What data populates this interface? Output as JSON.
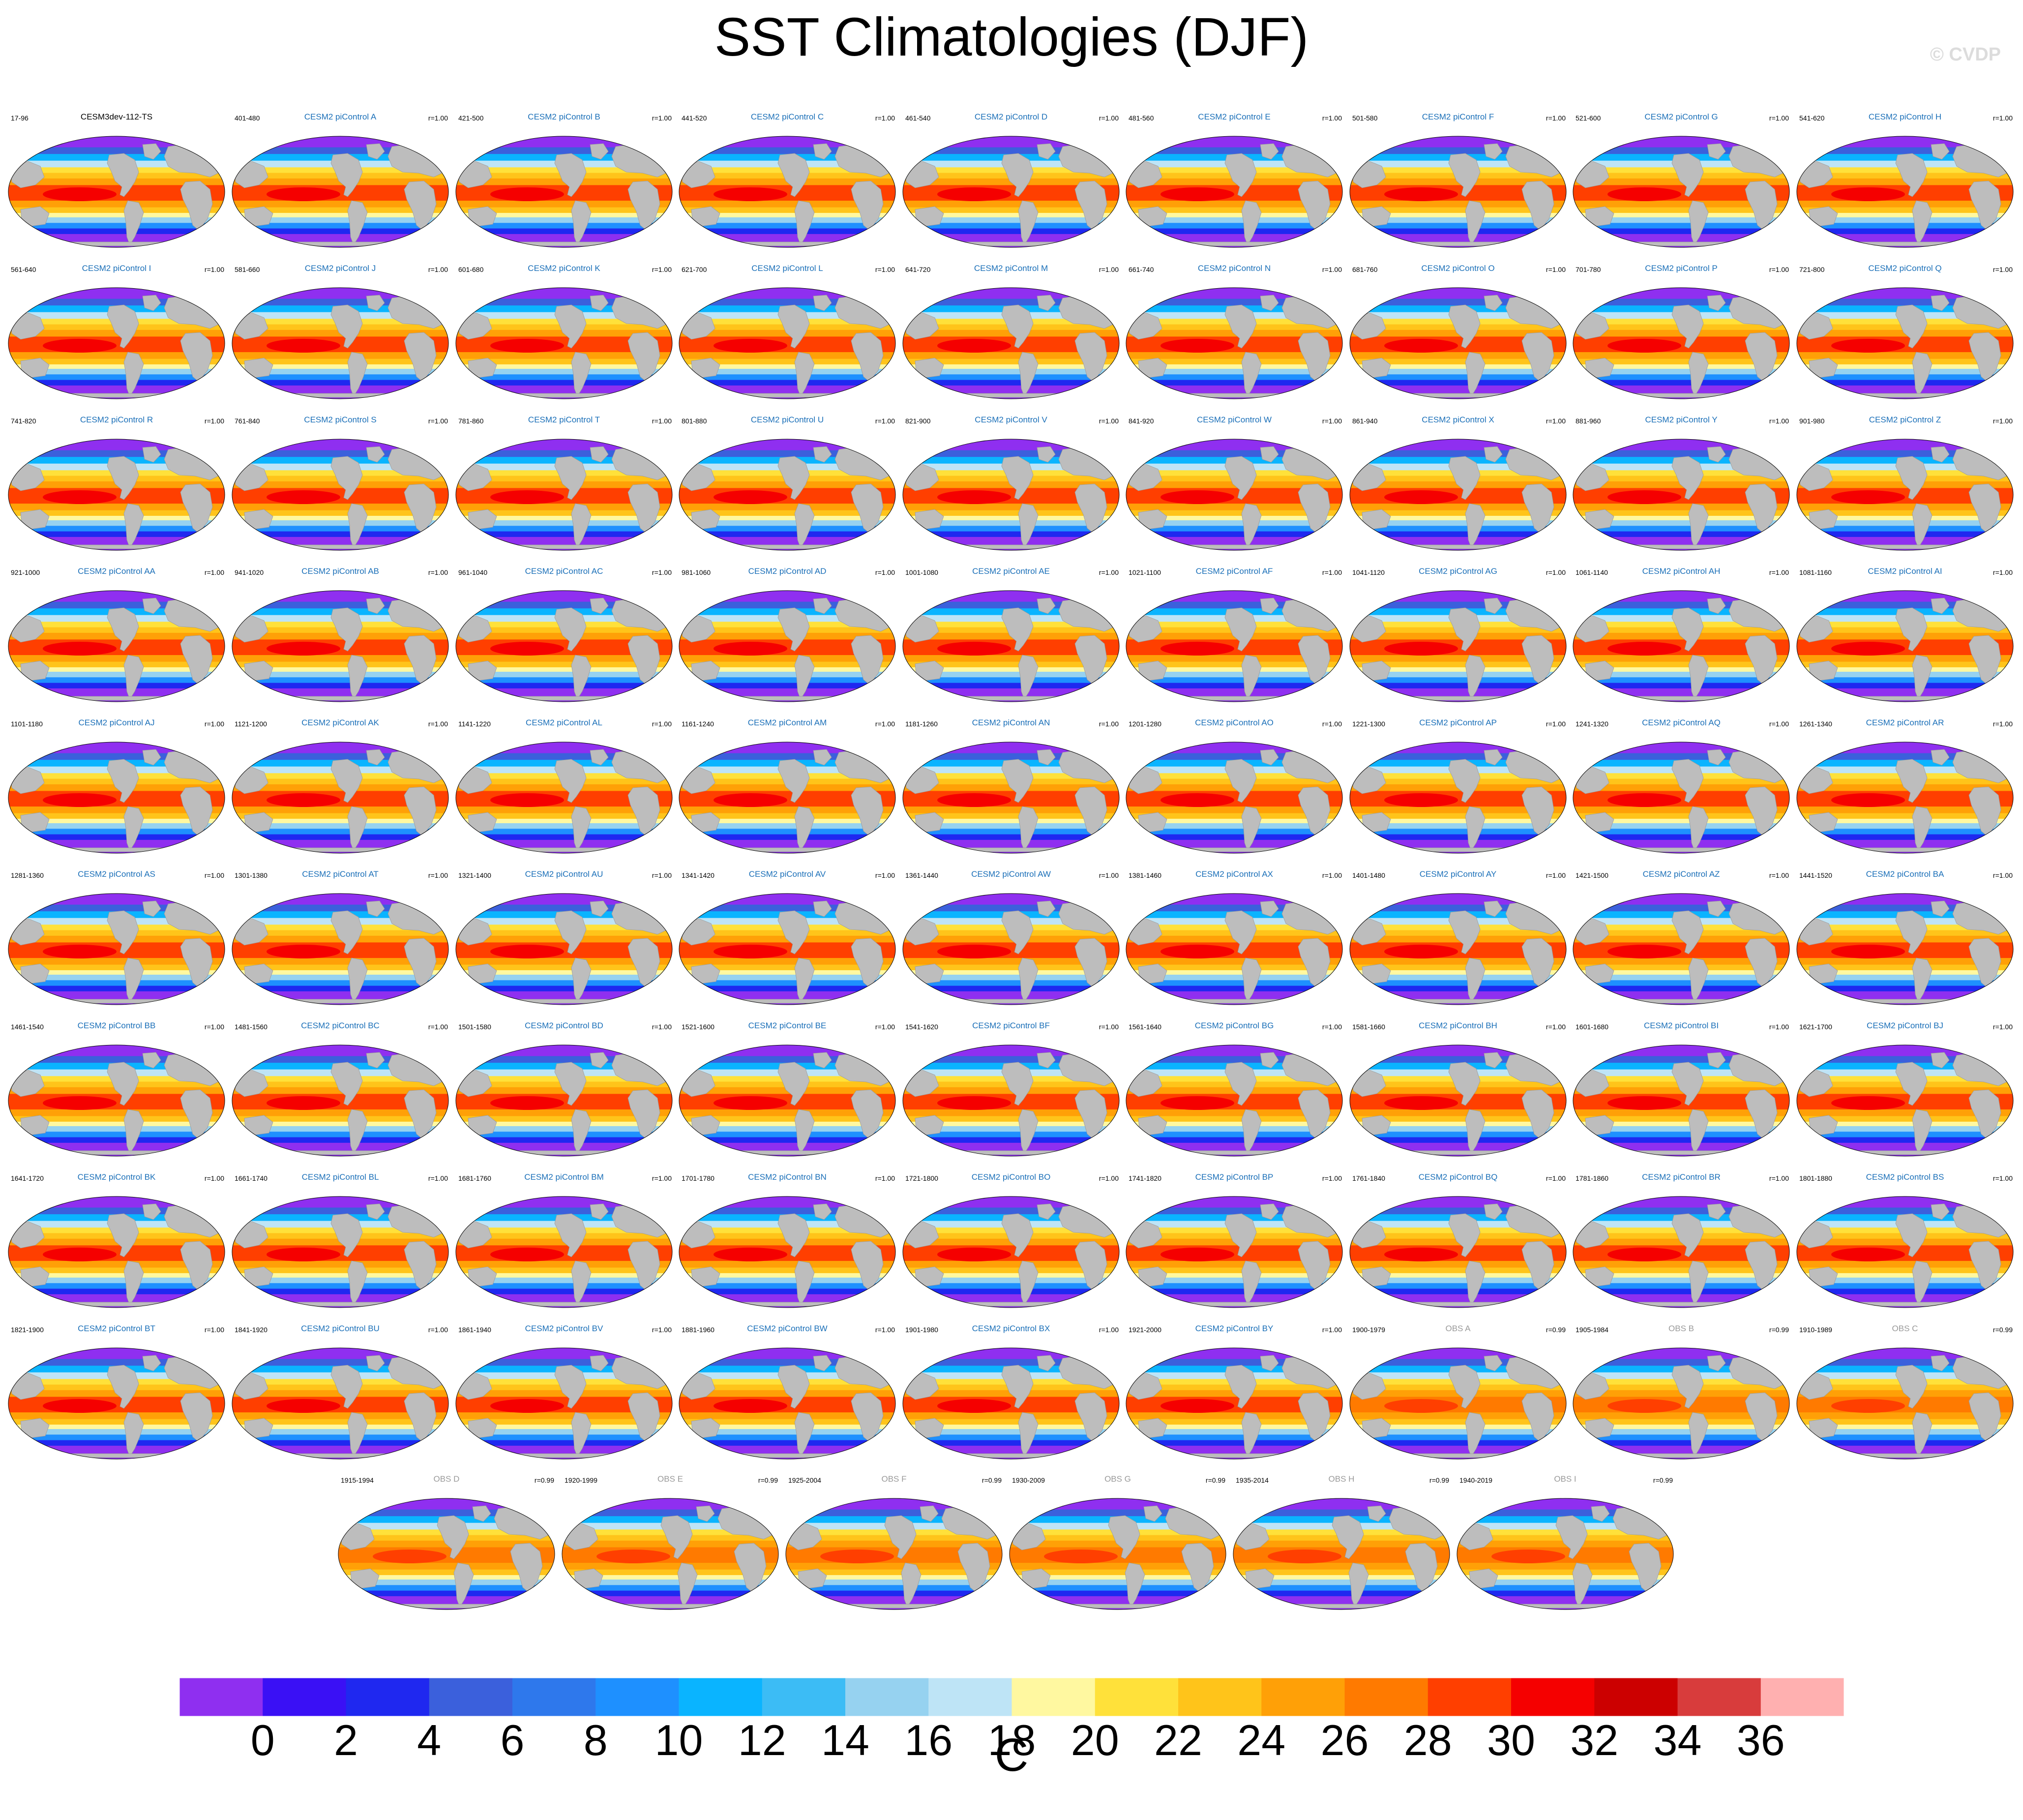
{
  "title": "SST Climatologies (DJF)",
  "copyright": "© CVDP",
  "chart_data": {
    "type": "map-panels",
    "variable": "SST",
    "season": "DJF",
    "colorbar": {
      "unit": "C",
      "tick_labels": [
        "0",
        "2",
        "4",
        "6",
        "8",
        "10",
        "12",
        "14",
        "16",
        "18",
        "20",
        "22",
        "24",
        "26",
        "28",
        "30",
        "32",
        "34",
        "36"
      ],
      "levels": [
        0,
        2,
        4,
        6,
        8,
        10,
        12,
        14,
        16,
        18,
        20,
        22,
        24,
        26,
        28,
        30,
        32,
        34,
        36
      ],
      "colors": [
        "#8f2ff0",
        "#3a10f5",
        "#1f28f0",
        "#3b60dc",
        "#2e78ec",
        "#1e90ff",
        "#0ab4ff",
        "#3cbcf5",
        "#96d2f0",
        "#bee4f6",
        "#fff8a0",
        "#ffe13a",
        "#ffc41a",
        "#ffa007",
        "#ff7a00",
        "#ff3f00",
        "#f50000",
        "#cc0000",
        "#d83c3c",
        "#ffb0b0"
      ]
    },
    "panels": [
      {
        "name": "CESM3dev-112-TS",
        "years": "17-96",
        "r": "",
        "obs": false,
        "ref": true
      },
      {
        "name": "CESM2 piControl A",
        "years": "401-480",
        "r": "r=1.00",
        "obs": false
      },
      {
        "name": "CESM2 piControl B",
        "years": "421-500",
        "r": "r=1.00",
        "obs": false
      },
      {
        "name": "CESM2 piControl C",
        "years": "441-520",
        "r": "r=1.00",
        "obs": false
      },
      {
        "name": "CESM2 piControl D",
        "years": "461-540",
        "r": "r=1.00",
        "obs": false
      },
      {
        "name": "CESM2 piControl E",
        "years": "481-560",
        "r": "r=1.00",
        "obs": false
      },
      {
        "name": "CESM2 piControl F",
        "years": "501-580",
        "r": "r=1.00",
        "obs": false
      },
      {
        "name": "CESM2 piControl G",
        "years": "521-600",
        "r": "r=1.00",
        "obs": false
      },
      {
        "name": "CESM2 piControl H",
        "years": "541-620",
        "r": "r=1.00",
        "obs": false
      },
      {
        "name": "CESM2 piControl I",
        "years": "561-640",
        "r": "r=1.00",
        "obs": false
      },
      {
        "name": "CESM2 piControl J",
        "years": "581-660",
        "r": "r=1.00",
        "obs": false
      },
      {
        "name": "CESM2 piControl K",
        "years": "601-680",
        "r": "r=1.00",
        "obs": false
      },
      {
        "name": "CESM2 piControl L",
        "years": "621-700",
        "r": "r=1.00",
        "obs": false
      },
      {
        "name": "CESM2 piControl M",
        "years": "641-720",
        "r": "r=1.00",
        "obs": false
      },
      {
        "name": "CESM2 piControl N",
        "years": "661-740",
        "r": "r=1.00",
        "obs": false
      },
      {
        "name": "CESM2 piControl O",
        "years": "681-760",
        "r": "r=1.00",
        "obs": false
      },
      {
        "name": "CESM2 piControl P",
        "years": "701-780",
        "r": "r=1.00",
        "obs": false
      },
      {
        "name": "CESM2 piControl Q",
        "years": "721-800",
        "r": "r=1.00",
        "obs": false
      },
      {
        "name": "CESM2 piControl R",
        "years": "741-820",
        "r": "r=1.00",
        "obs": false
      },
      {
        "name": "CESM2 piControl S",
        "years": "761-840",
        "r": "r=1.00",
        "obs": false
      },
      {
        "name": "CESM2 piControl T",
        "years": "781-860",
        "r": "r=1.00",
        "obs": false
      },
      {
        "name": "CESM2 piControl U",
        "years": "801-880",
        "r": "r=1.00",
        "obs": false
      },
      {
        "name": "CESM2 piControl V",
        "years": "821-900",
        "r": "r=1.00",
        "obs": false
      },
      {
        "name": "CESM2 piControl W",
        "years": "841-920",
        "r": "r=1.00",
        "obs": false
      },
      {
        "name": "CESM2 piControl X",
        "years": "861-940",
        "r": "r=1.00",
        "obs": false
      },
      {
        "name": "CESM2 piControl Y",
        "years": "881-960",
        "r": "r=1.00",
        "obs": false
      },
      {
        "name": "CESM2 piControl Z",
        "years": "901-980",
        "r": "r=1.00",
        "obs": false
      },
      {
        "name": "CESM2 piControl AA",
        "years": "921-1000",
        "r": "r=1.00",
        "obs": false
      },
      {
        "name": "CESM2 piControl AB",
        "years": "941-1020",
        "r": "r=1.00",
        "obs": false
      },
      {
        "name": "CESM2 piControl AC",
        "years": "961-1040",
        "r": "r=1.00",
        "obs": false
      },
      {
        "name": "CESM2 piControl AD",
        "years": "981-1060",
        "r": "r=1.00",
        "obs": false
      },
      {
        "name": "CESM2 piControl AE",
        "years": "1001-1080",
        "r": "r=1.00",
        "obs": false
      },
      {
        "name": "CESM2 piControl AF",
        "years": "1021-1100",
        "r": "r=1.00",
        "obs": false
      },
      {
        "name": "CESM2 piControl AG",
        "years": "1041-1120",
        "r": "r=1.00",
        "obs": false
      },
      {
        "name": "CESM2 piControl AH",
        "years": "1061-1140",
        "r": "r=1.00",
        "obs": false
      },
      {
        "name": "CESM2 piControl AI",
        "years": "1081-1160",
        "r": "r=1.00",
        "obs": false
      },
      {
        "name": "CESM2 piControl AJ",
        "years": "1101-1180",
        "r": "r=1.00",
        "obs": false
      },
      {
        "name": "CESM2 piControl AK",
        "years": "1121-1200",
        "r": "r=1.00",
        "obs": false
      },
      {
        "name": "CESM2 piControl AL",
        "years": "1141-1220",
        "r": "r=1.00",
        "obs": false
      },
      {
        "name": "CESM2 piControl AM",
        "years": "1161-1240",
        "r": "r=1.00",
        "obs": false
      },
      {
        "name": "CESM2 piControl AN",
        "years": "1181-1260",
        "r": "r=1.00",
        "obs": false
      },
      {
        "name": "CESM2 piControl AO",
        "years": "1201-1280",
        "r": "r=1.00",
        "obs": false
      },
      {
        "name": "CESM2 piControl AP",
        "years": "1221-1300",
        "r": "r=1.00",
        "obs": false
      },
      {
        "name": "CESM2 piControl AQ",
        "years": "1241-1320",
        "r": "r=1.00",
        "obs": false
      },
      {
        "name": "CESM2 piControl AR",
        "years": "1261-1340",
        "r": "r=1.00",
        "obs": false
      },
      {
        "name": "CESM2 piControl AS",
        "years": "1281-1360",
        "r": "r=1.00",
        "obs": false
      },
      {
        "name": "CESM2 piControl AT",
        "years": "1301-1380",
        "r": "r=1.00",
        "obs": false
      },
      {
        "name": "CESM2 piControl AU",
        "years": "1321-1400",
        "r": "r=1.00",
        "obs": false
      },
      {
        "name": "CESM2 piControl AV",
        "years": "1341-1420",
        "r": "r=1.00",
        "obs": false
      },
      {
        "name": "CESM2 piControl AW",
        "years": "1361-1440",
        "r": "r=1.00",
        "obs": false
      },
      {
        "name": "CESM2 piControl AX",
        "years": "1381-1460",
        "r": "r=1.00",
        "obs": false
      },
      {
        "name": "CESM2 piControl AY",
        "years": "1401-1480",
        "r": "r=1.00",
        "obs": false
      },
      {
        "name": "CESM2 piControl AZ",
        "years": "1421-1500",
        "r": "r=1.00",
        "obs": false
      },
      {
        "name": "CESM2 piControl BA",
        "years": "1441-1520",
        "r": "r=1.00",
        "obs": false
      },
      {
        "name": "CESM2 piControl BB",
        "years": "1461-1540",
        "r": "r=1.00",
        "obs": false
      },
      {
        "name": "CESM2 piControl BC",
        "years": "1481-1560",
        "r": "r=1.00",
        "obs": false
      },
      {
        "name": "CESM2 piControl BD",
        "years": "1501-1580",
        "r": "r=1.00",
        "obs": false
      },
      {
        "name": "CESM2 piControl BE",
        "years": "1521-1600",
        "r": "r=1.00",
        "obs": false
      },
      {
        "name": "CESM2 piControl BF",
        "years": "1541-1620",
        "r": "r=1.00",
        "obs": false
      },
      {
        "name": "CESM2 piControl BG",
        "years": "1561-1640",
        "r": "r=1.00",
        "obs": false
      },
      {
        "name": "CESM2 piControl BH",
        "years": "1581-1660",
        "r": "r=1.00",
        "obs": false
      },
      {
        "name": "CESM2 piControl BI",
        "years": "1601-1680",
        "r": "r=1.00",
        "obs": false
      },
      {
        "name": "CESM2 piControl BJ",
        "years": "1621-1700",
        "r": "r=1.00",
        "obs": false
      },
      {
        "name": "CESM2 piControl BK",
        "years": "1641-1720",
        "r": "r=1.00",
        "obs": false
      },
      {
        "name": "CESM2 piControl BL",
        "years": "1661-1740",
        "r": "r=1.00",
        "obs": false
      },
      {
        "name": "CESM2 piControl BM",
        "years": "1681-1760",
        "r": "r=1.00",
        "obs": false
      },
      {
        "name": "CESM2 piControl BN",
        "years": "1701-1780",
        "r": "r=1.00",
        "obs": false
      },
      {
        "name": "CESM2 piControl BO",
        "years": "1721-1800",
        "r": "r=1.00",
        "obs": false
      },
      {
        "name": "CESM2 piControl BP",
        "years": "1741-1820",
        "r": "r=1.00",
        "obs": false
      },
      {
        "name": "CESM2 piControl BQ",
        "years": "1761-1840",
        "r": "r=1.00",
        "obs": false
      },
      {
        "name": "CESM2 piControl BR",
        "years": "1781-1860",
        "r": "r=1.00",
        "obs": false
      },
      {
        "name": "CESM2 piControl BS",
        "years": "1801-1880",
        "r": "r=1.00",
        "obs": false
      },
      {
        "name": "CESM2 piControl BT",
        "years": "1821-1900",
        "r": "r=1.00",
        "obs": false
      },
      {
        "name": "CESM2 piControl BU",
        "years": "1841-1920",
        "r": "r=1.00",
        "obs": false
      },
      {
        "name": "CESM2 piControl BV",
        "years": "1861-1940",
        "r": "r=1.00",
        "obs": false
      },
      {
        "name": "CESM2 piControl BW",
        "years": "1881-1960",
        "r": "r=1.00",
        "obs": false
      },
      {
        "name": "CESM2 piControl BX",
        "years": "1901-1980",
        "r": "r=1.00",
        "obs": false
      },
      {
        "name": "CESM2 piControl BY",
        "years": "1921-2000",
        "r": "r=1.00",
        "obs": false
      },
      {
        "name": "OBS A",
        "years": "1900-1979",
        "r": "r=0.99",
        "obs": true
      },
      {
        "name": "OBS B",
        "years": "1905-1984",
        "r": "r=0.99",
        "obs": true
      },
      {
        "name": "OBS C",
        "years": "1910-1989",
        "r": "r=0.99",
        "obs": true
      },
      {
        "name": "OBS D",
        "years": "1915-1994",
        "r": "r=0.99",
        "obs": true
      },
      {
        "name": "OBS E",
        "years": "1920-1999",
        "r": "r=0.99",
        "obs": true
      },
      {
        "name": "OBS F",
        "years": "1925-2004",
        "r": "r=0.99",
        "obs": true
      },
      {
        "name": "OBS G",
        "years": "1930-2009",
        "r": "r=0.99",
        "obs": true
      },
      {
        "name": "OBS H",
        "years": "1935-2014",
        "r": "r=0.99",
        "obs": true
      },
      {
        "name": "OBS I",
        "years": "1940-2019",
        "r": "r=0.99",
        "obs": true
      }
    ]
  }
}
